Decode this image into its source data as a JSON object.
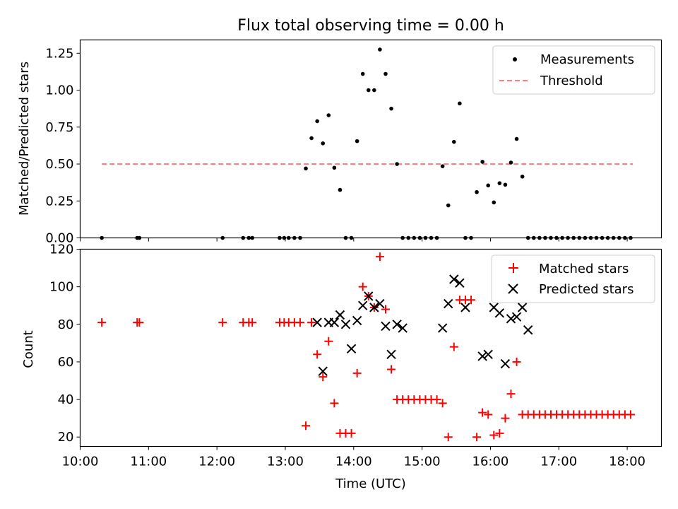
{
  "chart_data": [
    {
      "type": "scatter",
      "title": "Flux total observing time = 0.00 h",
      "xlabel": "",
      "ylabel": "Matched/Predicted stars",
      "xlim": [
        "10:00",
        "18:30"
      ],
      "ylim": [
        0,
        1.34
      ],
      "yticks": [
        "0.00",
        "0.25",
        "0.50",
        "0.75",
        "1.00",
        "1.25"
      ],
      "legend_position": "top-right",
      "series": [
        {
          "name": "Measurements",
          "kind": "scatter",
          "color": "#000000",
          "marker": "dot",
          "x": [
            "10:19",
            "10:50",
            "10:52",
            "12:05",
            "12:23",
            "12:28",
            "12:31",
            "12:55",
            "12:59",
            "13:03",
            "13:08",
            "13:13",
            "13:18",
            "13:23",
            "13:28",
            "13:33",
            "13:38",
            "13:43",
            "13:48",
            "13:53",
            "13:58",
            "14:03",
            "14:08",
            "14:13",
            "14:18",
            "14:23",
            "14:28",
            "14:33",
            "14:38",
            "14:43",
            "14:48",
            "14:53",
            "14:58",
            "15:03",
            "15:08",
            "15:13",
            "15:18",
            "15:23",
            "15:28",
            "15:33",
            "15:38",
            "15:43",
            "15:48",
            "15:53",
            "15:58",
            "16:03",
            "16:08",
            "16:13",
            "16:18",
            "16:23",
            "16:28",
            "16:33",
            "16:38",
            "16:43",
            "16:48",
            "16:53",
            "16:58",
            "17:03",
            "17:08",
            "17:13",
            "17:18",
            "17:23",
            "17:28",
            "17:33",
            "17:38",
            "17:43",
            "17:48",
            "17:53",
            "17:58",
            "18:03"
          ],
          "y": [
            0,
            0,
            0,
            0,
            0,
            0,
            0,
            0,
            0,
            0,
            0,
            0,
            0.47,
            0.675,
            0.79,
            0.64,
            0.83,
            0.475,
            0.325,
            0,
            0,
            0.655,
            1.11,
            1.0,
            1.0,
            1.275,
            1.11,
            0.875,
            0.5,
            0,
            0,
            0,
            0,
            0,
            0,
            0,
            0.485,
            0.22,
            0.65,
            0.91,
            0,
            0,
            0.31,
            0.515,
            0.355,
            0.24,
            0.37,
            0.36,
            0.51,
            0.67,
            0.415,
            0,
            0,
            0,
            0,
            0,
            0,
            0,
            0,
            0,
            0,
            0,
            0,
            0,
            0,
            0,
            0,
            0,
            0,
            0
          ]
        },
        {
          "name": "Threshold",
          "kind": "line",
          "color": "#ff7f7f",
          "style": "dashed",
          "x": [
            "10:19",
            "18:05"
          ],
          "y": [
            0.5,
            0.5
          ]
        }
      ]
    },
    {
      "type": "scatter",
      "title": "",
      "xlabel": "Time (UTC)",
      "ylabel": "Count",
      "xlim": [
        "10:00",
        "18:30"
      ],
      "ylim": [
        15,
        120
      ],
      "xticks": [
        "10:00",
        "11:00",
        "12:00",
        "13:00",
        "14:00",
        "15:00",
        "16:00",
        "17:00",
        "18:00"
      ],
      "yticks": [
        "20",
        "40",
        "60",
        "80",
        "100",
        "120"
      ],
      "legend_position": "top-right",
      "series": [
        {
          "name": "Matched stars",
          "kind": "scatter",
          "color": "#ff0000",
          "marker": "plus",
          "x": [
            "10:19",
            "10:50",
            "10:52",
            "12:05",
            "12:23",
            "12:28",
            "12:31",
            "12:55",
            "12:59",
            "13:03",
            "13:08",
            "13:13",
            "13:18",
            "13:23",
            "13:28",
            "13:33",
            "13:38",
            "13:43",
            "13:48",
            "13:53",
            "13:58",
            "14:03",
            "14:08",
            "14:13",
            "14:18",
            "14:23",
            "14:28",
            "14:33",
            "14:38",
            "14:43",
            "14:48",
            "14:53",
            "14:58",
            "15:03",
            "15:08",
            "15:13",
            "15:18",
            "15:23",
            "15:28",
            "15:33",
            "15:38",
            "15:43",
            "15:48",
            "15:53",
            "15:58",
            "16:03",
            "16:08",
            "16:13",
            "16:18",
            "16:23",
            "16:28",
            "16:33",
            "16:38",
            "16:43",
            "16:48",
            "16:53",
            "16:58",
            "17:03",
            "17:08",
            "17:13",
            "17:18",
            "17:23",
            "17:28",
            "17:33",
            "17:38",
            "17:43",
            "17:48",
            "17:53",
            "17:58",
            "18:03"
          ],
          "y": [
            81,
            81,
            81,
            81,
            81,
            81,
            81,
            81,
            81,
            81,
            81,
            81,
            26,
            81,
            64,
            52,
            71,
            38,
            22,
            22,
            22,
            54,
            100,
            95,
            89,
            116,
            88,
            56,
            40,
            40,
            40,
            40,
            40,
            40,
            40,
            40,
            38,
            20,
            68,
            93,
            93,
            93,
            20,
            33,
            32,
            21,
            22,
            30,
            43,
            60,
            32,
            32,
            32,
            32,
            32,
            32,
            32,
            32,
            32,
            32,
            32,
            32,
            32,
            32,
            32,
            32,
            32,
            32,
            32,
            32
          ]
        },
        {
          "name": "Predicted stars",
          "kind": "scatter",
          "color": "#000000",
          "marker": "x",
          "x": [
            "13:28",
            "13:33",
            "13:38",
            "13:43",
            "13:48",
            "13:53",
            "13:58",
            "14:03",
            "14:08",
            "14:13",
            "14:18",
            "14:23",
            "14:28",
            "14:33",
            "14:38",
            "14:43",
            "15:18",
            "15:23",
            "15:28",
            "15:33",
            "15:38",
            "15:53",
            "15:58",
            "16:03",
            "16:08",
            "16:13",
            "16:18",
            "16:23",
            "16:28",
            "16:33"
          ],
          "y": [
            81,
            55,
            81,
            81,
            85,
            80,
            67,
            82,
            90,
            95,
            89,
            91,
            79,
            64,
            80,
            78,
            78,
            91,
            104,
            102,
            89,
            63,
            64,
            89,
            86,
            59,
            83,
            84,
            89,
            77
          ]
        }
      ]
    }
  ]
}
